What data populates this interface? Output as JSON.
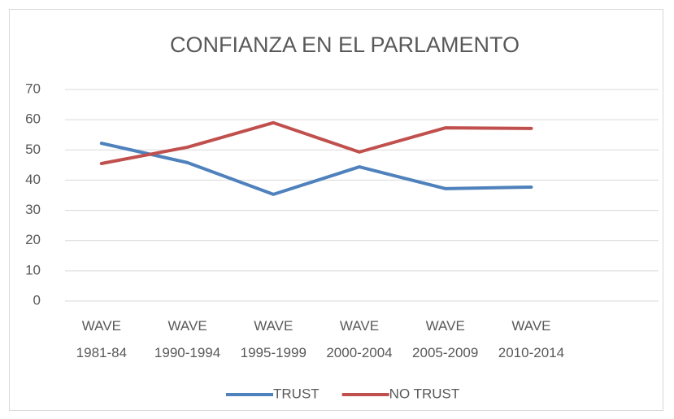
{
  "chart_data": {
    "type": "line",
    "title": "CONFIANZA EN EL PARLAMENTO",
    "categories": [
      "WAVE 1981-84",
      "WAVE 1990-1994",
      "WAVE 1995-1999",
      "WAVE 2000-2004",
      "WAVE 2005-2009",
      "WAVE 2010-2014",
      null
    ],
    "series": [
      {
        "name": "TRUST",
        "color": "#4f81bd",
        "values": [
          52.2,
          45.8,
          35.3,
          44.4,
          37.2,
          37.7,
          null
        ]
      },
      {
        "name": "NO TRUST",
        "color": "#c0504d",
        "values": [
          45.5,
          50.9,
          59.0,
          49.3,
          57.3,
          57.1,
          null
        ]
      }
    ],
    "ylim": [
      0,
      70
    ],
    "yticks": [
      0,
      10,
      20,
      30,
      40,
      50,
      60,
      70
    ],
    "grid": true,
    "legend": "bottom"
  }
}
